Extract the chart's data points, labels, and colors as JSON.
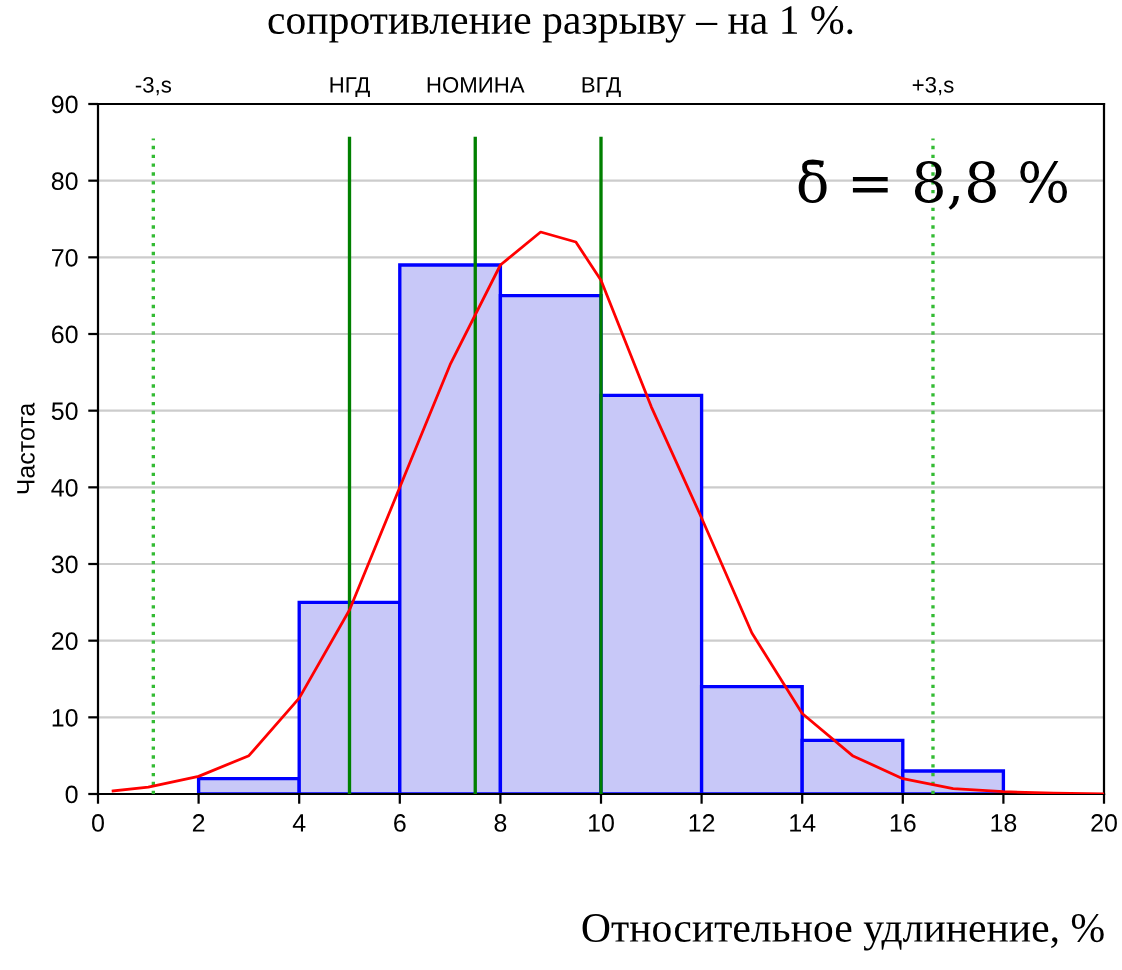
{
  "chart_data": {
    "type": "histogram",
    "ylabel": "Частота",
    "xlabel": "Относительное удлинение, %",
    "annotations": [
      "сопротивление разрыву – на 1 %.",
      "δ̄ = 8,8 %"
    ],
    "bins": [
      0,
      2,
      4,
      6,
      8,
      10,
      12,
      14,
      16,
      18,
      20
    ],
    "values": [
      0,
      2,
      25,
      69,
      65,
      52,
      14,
      7,
      3,
      0
    ],
    "color": "#c8c8f8",
    "series": [
      {
        "type": "line",
        "color": "#ff0000",
        "x": [
          0.3,
          1,
          2,
          3,
          4,
          5,
          6,
          7,
          8,
          8.8,
          9.5,
          10,
          11,
          12,
          13,
          14,
          15,
          16,
          17,
          18,
          19,
          20
        ],
        "values": [
          0.4,
          0.9,
          2.3,
          5,
          12.5,
          24,
          40,
          56,
          69,
          73.3,
          72,
          67,
          50.5,
          36,
          21,
          10.5,
          5,
          2,
          0.7,
          0.3,
          0.1,
          0
        ]
      }
    ],
    "ref_lines": [
      {
        "axis": "x",
        "value": 1.1,
        "label": "-3,s",
        "color": "#33bb33",
        "line_style": "dotted"
      },
      {
        "axis": "x",
        "value": 5,
        "label": "НГД",
        "color": "#008000",
        "line_style": "solid"
      },
      {
        "axis": "x",
        "value": 7.5,
        "label": "НОМИНА",
        "color": "#008000",
        "line_style": "solid"
      },
      {
        "axis": "x",
        "value": 10,
        "label": "ВГД",
        "color": "#008000",
        "line_style": "solid"
      },
      {
        "axis": "x",
        "value": 16.6,
        "label": "+3,s",
        "color": "#33bb33",
        "line_style": "dotted"
      }
    ],
    "xlim": [
      0,
      20
    ],
    "ylim": [
      0,
      90
    ],
    "xticks": [
      0,
      2,
      4,
      6,
      8,
      10,
      12,
      14,
      16,
      18,
      20
    ],
    "yticks": [
      0,
      10,
      20,
      30,
      40,
      50,
      60,
      70,
      80,
      90
    ],
    "grid": "y",
    "legend": false
  }
}
